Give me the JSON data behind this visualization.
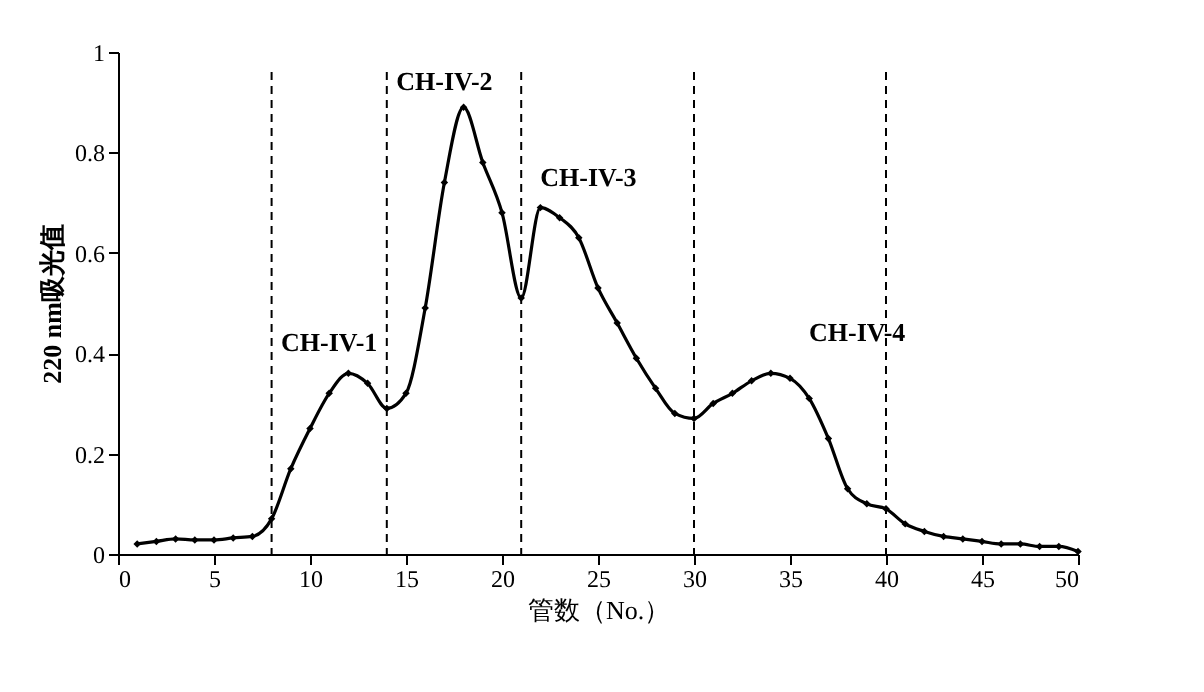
{
  "chart_data": {
    "type": "line",
    "xlabel": "管数（No.）",
    "ylabel": "220 nm吸光值",
    "x": [
      1,
      2,
      3,
      4,
      5,
      6,
      7,
      8,
      9,
      10,
      11,
      12,
      13,
      14,
      15,
      16,
      17,
      18,
      19,
      20,
      21,
      22,
      23,
      24,
      25,
      26,
      27,
      28,
      29,
      30,
      31,
      32,
      33,
      34,
      35,
      36,
      37,
      38,
      39,
      40,
      41,
      42,
      43,
      44,
      45,
      46,
      47,
      48,
      49,
      50
    ],
    "series": [
      {
        "color": "#000000",
        "values": [
          0.02,
          0.025,
          0.03,
          0.028,
          0.028,
          0.032,
          0.035,
          0.07,
          0.17,
          0.25,
          0.32,
          0.36,
          0.34,
          0.29,
          0.32,
          0.49,
          0.74,
          0.89,
          0.78,
          0.68,
          0.51,
          0.69,
          0.67,
          0.63,
          0.53,
          0.46,
          0.39,
          0.33,
          0.28,
          0.27,
          0.3,
          0.32,
          0.345,
          0.36,
          0.35,
          0.31,
          0.23,
          0.13,
          0.1,
          0.09,
          0.06,
          0.045,
          0.035,
          0.03,
          0.025,
          0.02,
          0.02,
          0.015,
          0.015,
          0.005
        ]
      }
    ],
    "xlim": [
      0,
      50
    ],
    "xticks": [
      0,
      5,
      10,
      15,
      20,
      25,
      30,
      35,
      40,
      45,
      50
    ],
    "ylim": [
      0,
      1
    ],
    "yticks": [
      0,
      0.2,
      0.4,
      0.6,
      0.8,
      1
    ],
    "marker": "diamond",
    "line_style": "solid",
    "grid": false,
    "ref_lines": [
      {
        "axis": "x",
        "value": 8,
        "color": "#000000",
        "line_style": "dashed"
      },
      {
        "axis": "x",
        "value": 14,
        "color": "#000000",
        "line_style": "dashed"
      },
      {
        "axis": "x",
        "value": 21,
        "color": "#000000",
        "line_style": "dashed"
      },
      {
        "axis": "x",
        "value": 30,
        "color": "#000000",
        "line_style": "dashed"
      },
      {
        "axis": "x",
        "value": 40,
        "color": "#000000",
        "line_style": "dashed"
      }
    ],
    "annotations": [
      "CH-IV-1",
      "CH-IV-2",
      "CH-IV-3",
      "CH-IV-4"
    ]
  }
}
